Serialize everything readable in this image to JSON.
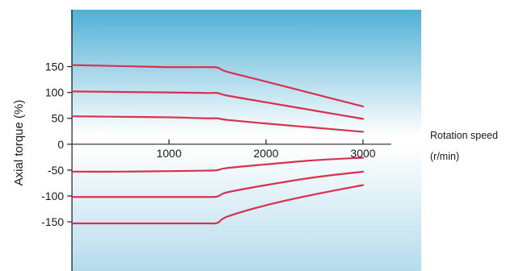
{
  "chart_data": {
    "type": "line",
    "title": "",
    "xlabel": "Rotation speed",
    "xlabel_unit": "(r/min)",
    "ylabel": "Axial torque (%)",
    "xlim": [
      -10,
      3600
    ],
    "ylim": [
      -245,
      260
    ],
    "x_ticks": [
      1000,
      2000,
      3000
    ],
    "y_ticks": [
      150,
      100,
      50,
      0,
      -50,
      -100,
      -150
    ],
    "grid": false,
    "legend": "none",
    "colors": {
      "line": "#d9304f",
      "bg_top": "#4fb0d6",
      "bg_mid": "#ffffff",
      "bg_bottom": "#b5dcec",
      "axis": "#222222"
    },
    "series": [
      {
        "x": [
          0,
          500,
          1000,
          1400,
          1500,
          1600,
          2000,
          2500,
          3000
        ],
        "y": [
          153,
          151,
          149,
          149,
          148,
          140,
          121,
          97,
          73
        ]
      },
      {
        "x": [
          0,
          500,
          1000,
          1400,
          1500,
          1600,
          2000,
          2500,
          3000
        ],
        "y": [
          102,
          101,
          100,
          99,
          99,
          94,
          81,
          65,
          49
        ]
      },
      {
        "x": [
          0,
          500,
          1000,
          1400,
          1500,
          1600,
          2000,
          2500,
          3000
        ],
        "y": [
          54,
          53,
          52,
          50,
          50,
          47,
          40,
          32,
          24
        ]
      },
      {
        "x": [
          0,
          500,
          1000,
          1400,
          1500,
          1600,
          2000,
          2500,
          3000
        ],
        "y": [
          -53,
          -53,
          -52,
          -51,
          -50,
          -46,
          -39,
          -31,
          -26
        ]
      },
      {
        "x": [
          0,
          500,
          1000,
          1400,
          1500,
          1600,
          2000,
          2500,
          3000
        ],
        "y": [
          -102,
          -102,
          -102,
          -102,
          -101,
          -93,
          -79,
          -64,
          -53
        ]
      },
      {
        "x": [
          0,
          500,
          1000,
          1400,
          1500,
          1600,
          2000,
          2500,
          3000
        ],
        "y": [
          -153,
          -153,
          -153,
          -153,
          -152,
          -140,
          -118,
          -97,
          -79
        ]
      }
    ]
  }
}
